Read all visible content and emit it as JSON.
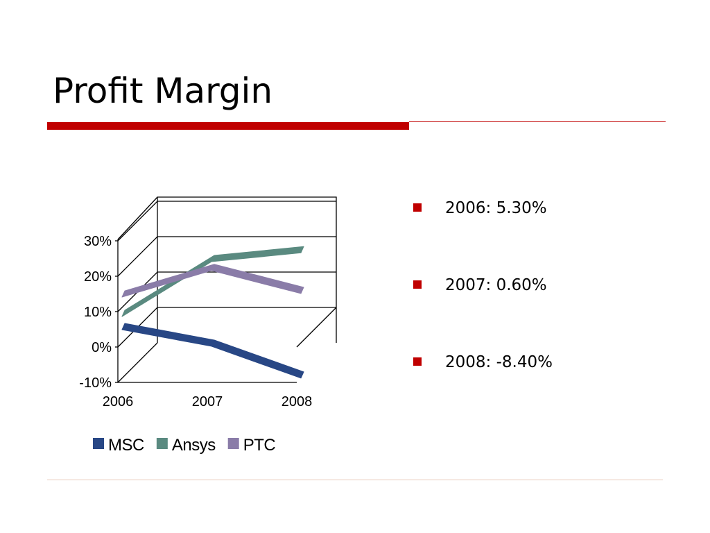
{
  "slide": {
    "title": "Profit Margin",
    "accent_color": "#C00000",
    "footer_line_color": "#E8C8B8"
  },
  "bullets": [
    "2006: 5.30%",
    "2007: 0.60%",
    "2008: -8.40%"
  ],
  "bullet_color": "#C00000",
  "chart_data": {
    "type": "line",
    "style": "3d",
    "categories": [
      "2006",
      "2007",
      "2008"
    ],
    "series": [
      {
        "name": "MSC",
        "values": [
          5.3,
          0.6,
          -8.4
        ],
        "color": "#284785"
      },
      {
        "name": "Ansys",
        "values": [
          9.0,
          24.5,
          27.0
        ],
        "color": "#5A8A80"
      },
      {
        "name": "PTC",
        "values": [
          14.5,
          22.0,
          15.5
        ],
        "color": "#8A7CA8"
      }
    ],
    "y_ticks": [
      "-10%",
      "0%",
      "10%",
      "20%",
      "30%"
    ],
    "ylim": [
      -10,
      30
    ],
    "grid": true,
    "legend_position": "bottom"
  }
}
